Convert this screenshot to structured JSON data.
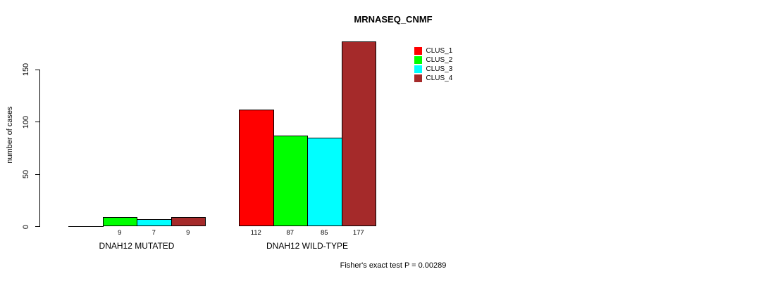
{
  "chart_data": {
    "type": "bar",
    "title": "MRNASEQ_CNMF",
    "ylabel": "number of cases",
    "yticks": [
      0,
      50,
      100,
      150
    ],
    "ylim": [
      0,
      177
    ],
    "grid": false,
    "legend_position": "top-right",
    "categories": [
      "DNAH12 MUTATED",
      "DNAH12 WILD-TYPE"
    ],
    "series": [
      {
        "name": "CLUS_1",
        "color": "#ff0000",
        "values": [
          0,
          112
        ]
      },
      {
        "name": "CLUS_2",
        "color": "#00ff00",
        "values": [
          9,
          87
        ]
      },
      {
        "name": "CLUS_3",
        "color": "#00ffff",
        "values": [
          7,
          85
        ]
      },
      {
        "name": "CLUS_4",
        "color": "#a52a2a",
        "values": [
          9,
          177
        ]
      }
    ],
    "groups": [
      {
        "label": "DNAH12 MUTATED",
        "values": [
          0,
          9,
          7,
          9
        ],
        "bar_labels": [
          "",
          "9",
          "7",
          "9"
        ]
      },
      {
        "label": "DNAH12 WILD-TYPE",
        "values": [
          112,
          87,
          85,
          177
        ],
        "bar_labels": [
          "112",
          "87",
          "85",
          "177"
        ]
      }
    ],
    "annotation": "Fisher's exact test P = 0.00289"
  }
}
